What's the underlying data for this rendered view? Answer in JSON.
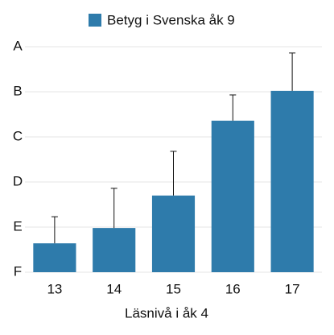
{
  "chart_data": {
    "type": "bar",
    "series": [
      {
        "name": "Betyg i Svenska åk 9",
        "color": "#2e7bab",
        "values": [
          0.64,
          0.98,
          1.7,
          3.36,
          4.02
        ],
        "errors": [
          0.59,
          0.88,
          0.98,
          0.57,
          0.84
        ]
      }
    ],
    "categories": [
      "13",
      "14",
      "15",
      "16",
      "17"
    ],
    "xlabel": "Läsnivå i åk 4",
    "ylim": [
      0,
      5
    ],
    "yticks": [
      {
        "value": 0,
        "label": "F"
      },
      {
        "value": 1,
        "label": "E"
      },
      {
        "value": 2,
        "label": "D"
      },
      {
        "value": 3,
        "label": "C"
      },
      {
        "value": 4,
        "label": "B"
      },
      {
        "value": 5,
        "label": "A"
      }
    ],
    "grid": true,
    "legend": "top"
  }
}
